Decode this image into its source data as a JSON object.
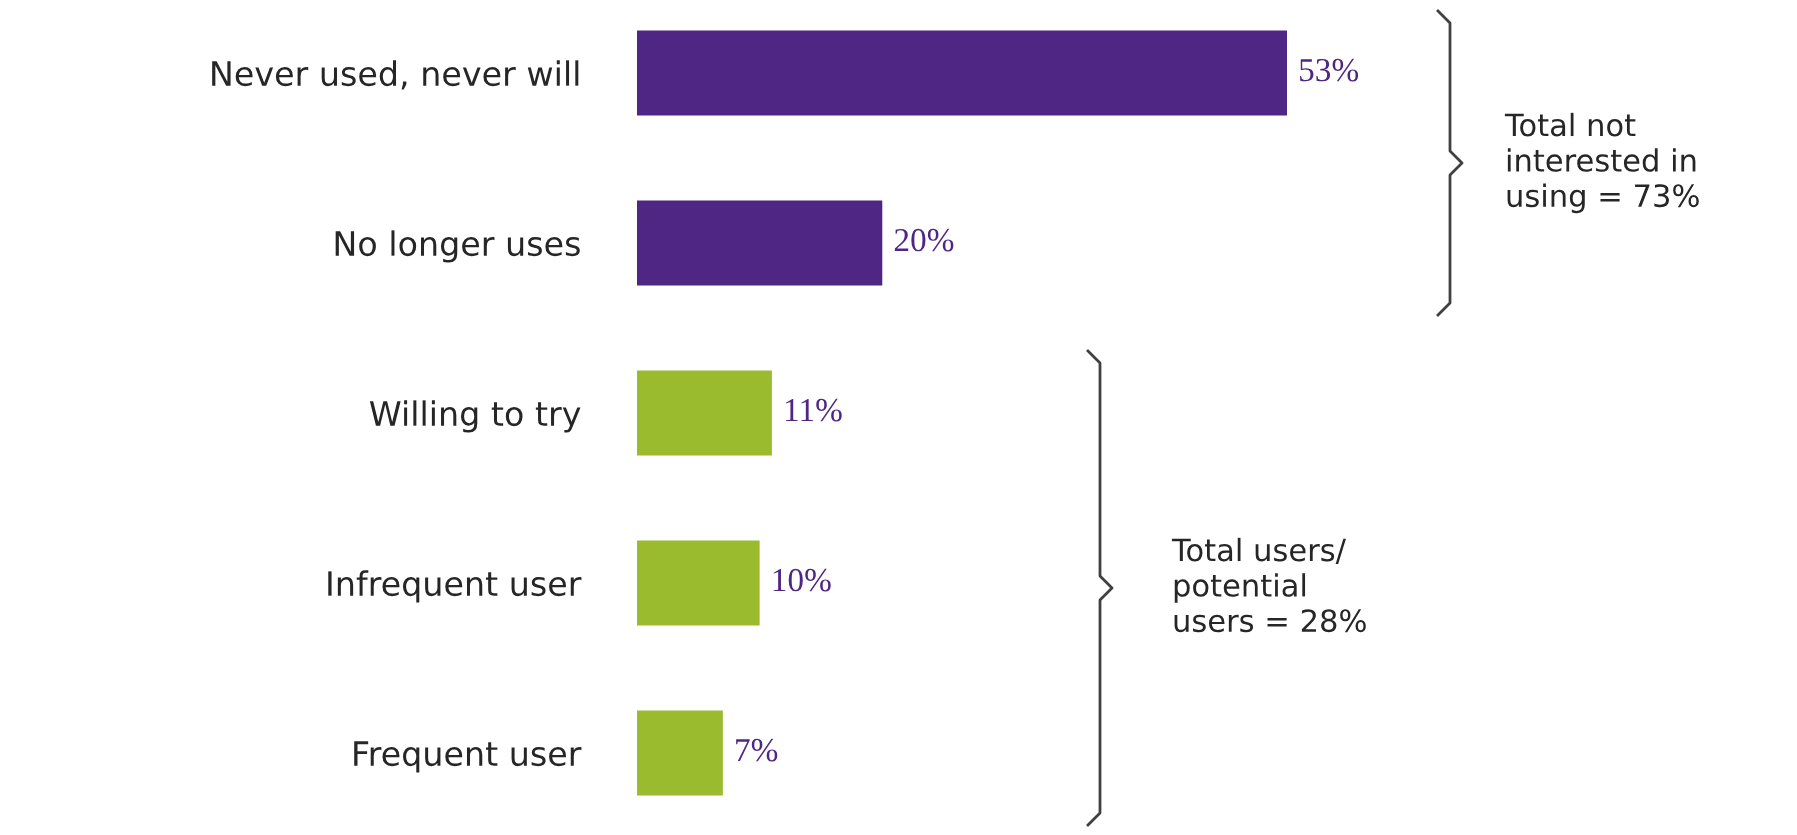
{
  "chart_data": {
    "type": "bar",
    "orientation": "horizontal",
    "categories": [
      "Never used, never will",
      "No longer uses",
      "Willing to try",
      "Infrequent user",
      "Frequent user"
    ],
    "values": [
      53,
      20,
      11,
      10,
      7
    ],
    "colors": [
      "#4f2683",
      "#4f2683",
      "#9bbb2f",
      "#9bbb2f",
      "#9bbb2f"
    ],
    "value_labels": [
      "53%",
      "20%",
      "11%",
      "10%",
      "7%"
    ],
    "annotations": [
      "Total not\ninterested in\nusing = 73%",
      "Total users/\npotential\nusers = 28%"
    ],
    "grid": false,
    "legend": false
  }
}
